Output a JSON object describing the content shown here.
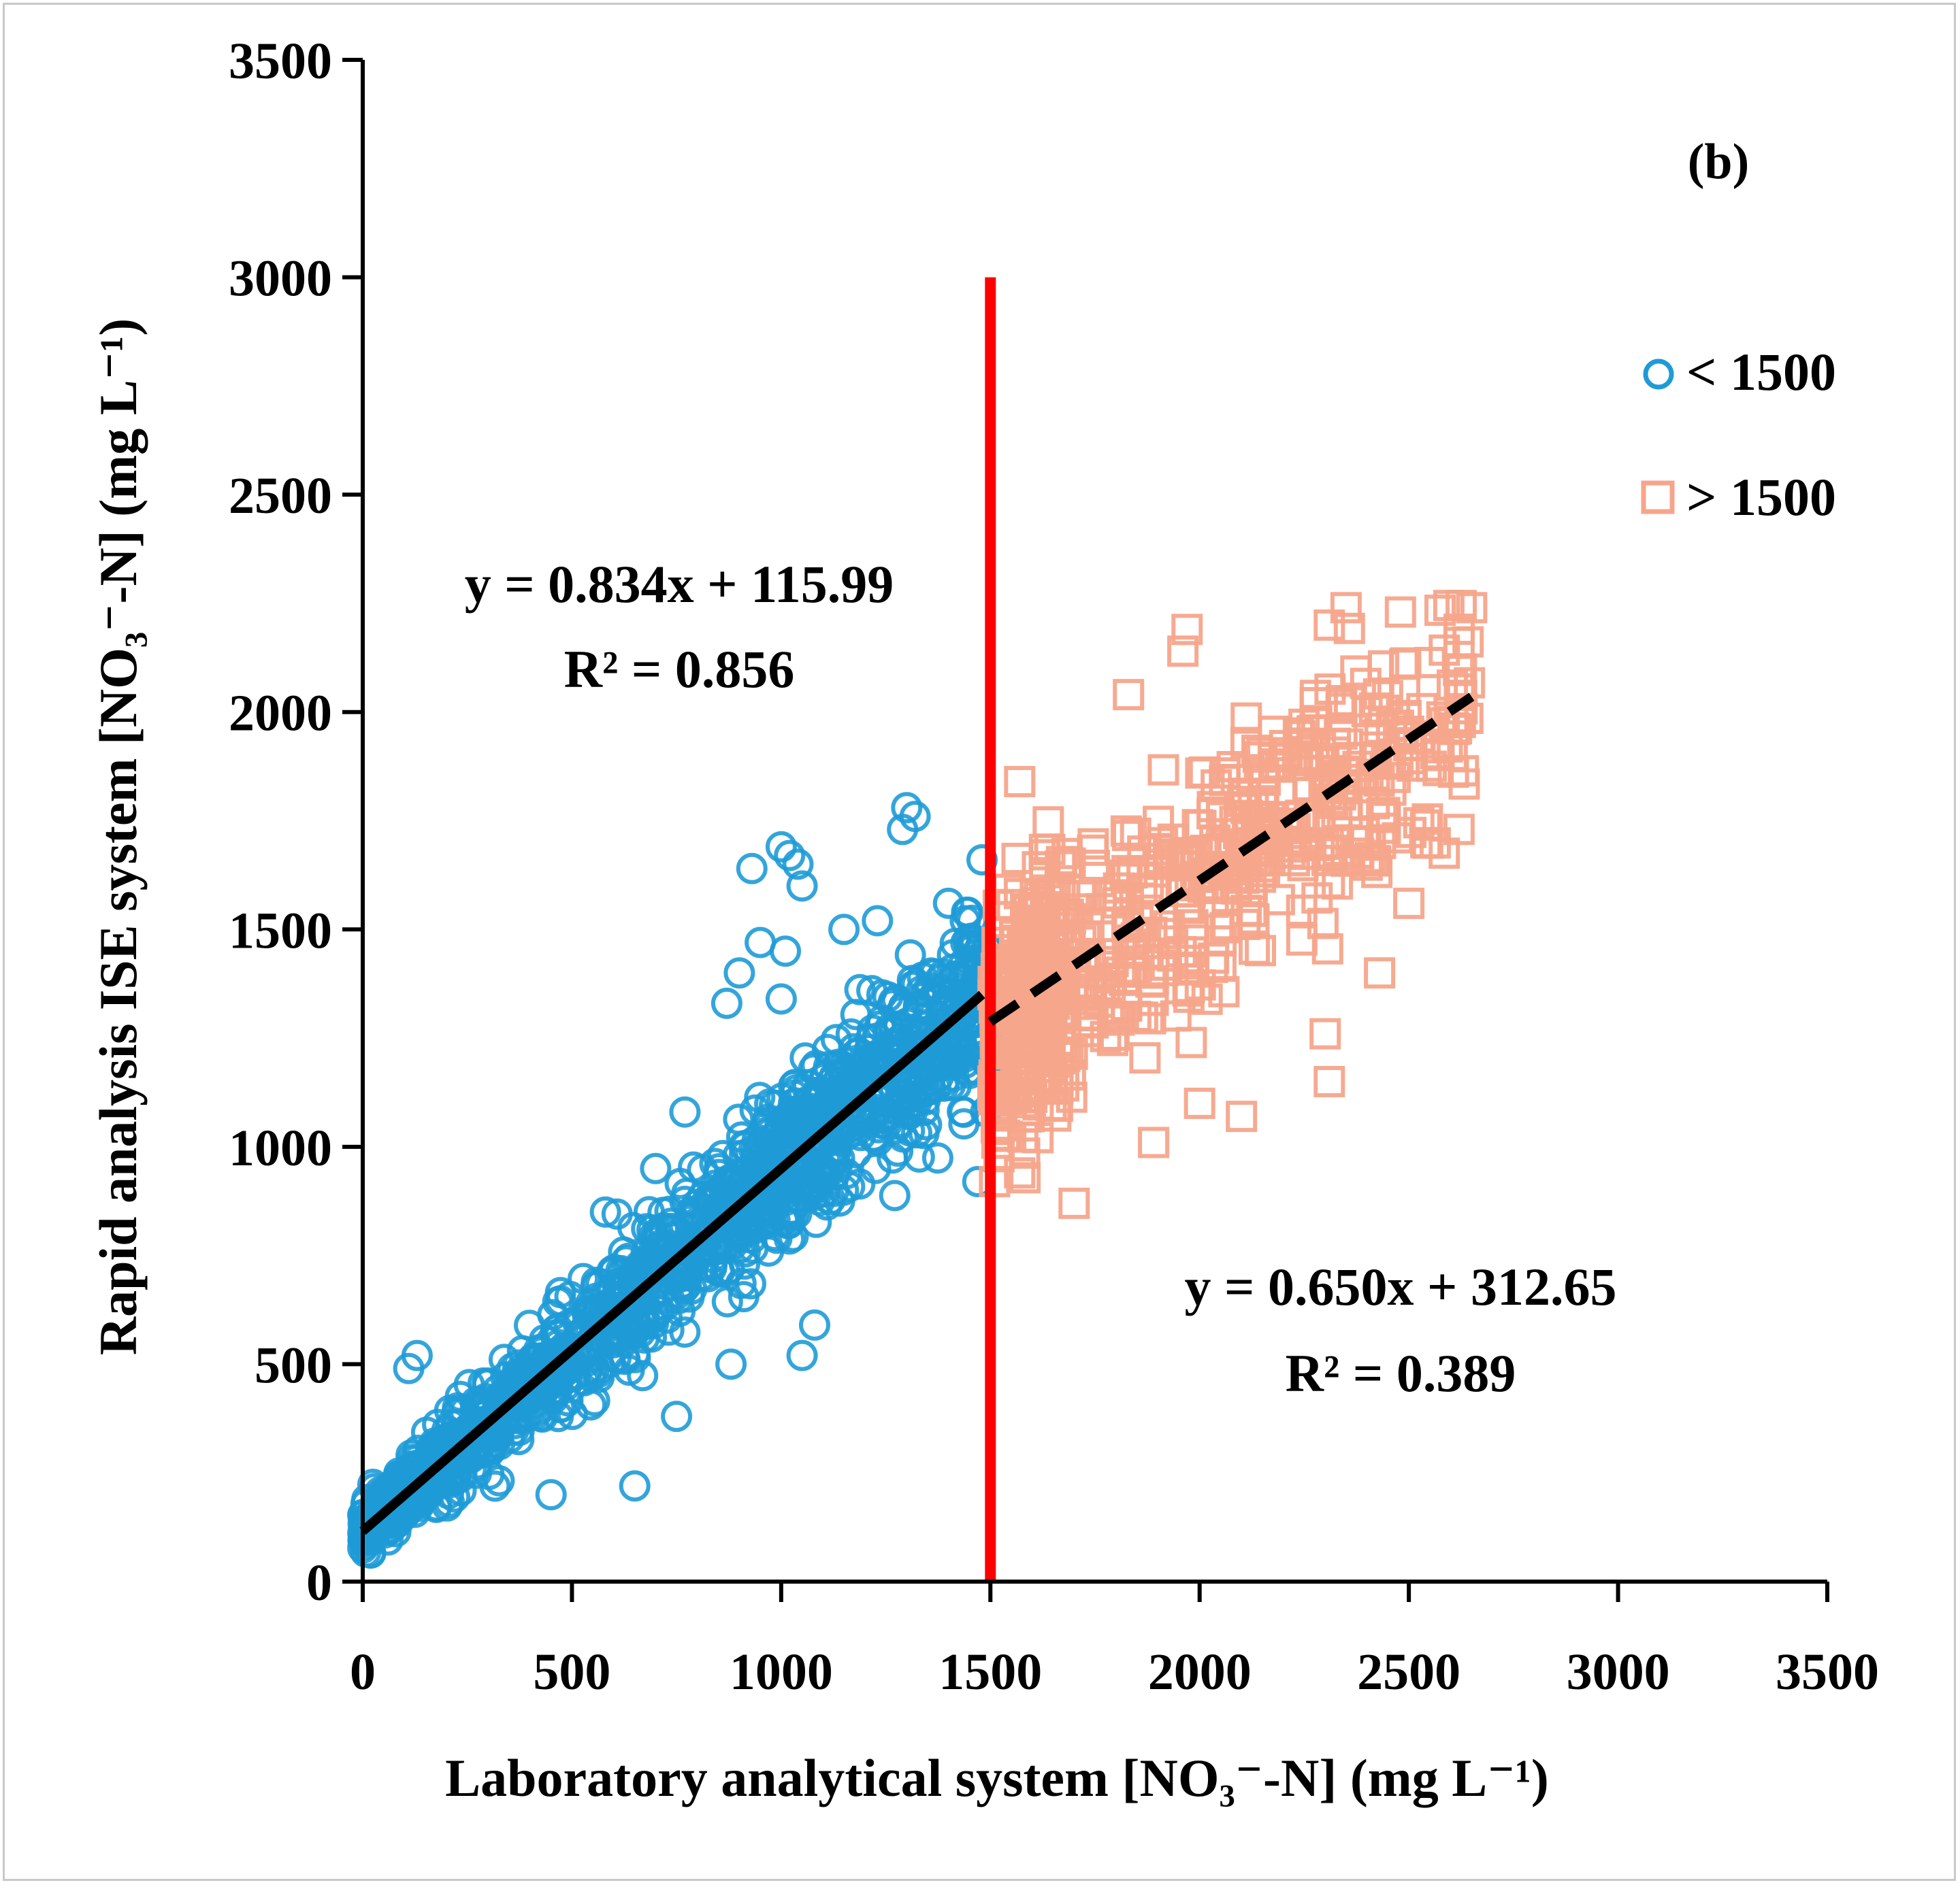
{
  "chart_data": {
    "type": "scatter",
    "panel_label": "(b)",
    "xlabel": "Laboratory analytical system [NO₃⁻-N] (mg L⁻¹)",
    "ylabel": "Rapid analysis ISE system [NO₃⁻-N] (mg L⁻¹)",
    "xlim": [
      0,
      3500
    ],
    "ylim": [
      0,
      3500
    ],
    "x_ticks": [
      "0",
      "500",
      "1000",
      "1500",
      "2000",
      "2500",
      "3000",
      "3500"
    ],
    "y_ticks": [
      "0",
      "500",
      "1000",
      "1500",
      "2000",
      "2500",
      "3000",
      "3500"
    ],
    "grid": false,
    "legend_position": "top-right",
    "threshold_line": {
      "x": 1500,
      "y_range": [
        0,
        3000
      ],
      "color": "#ff0000"
    },
    "series": [
      {
        "name": "< 1500",
        "marker": "circle",
        "color": "#1e9bd7",
        "n_points": 1500,
        "x_range": [
          0,
          1500
        ],
        "fit": {
          "equation": "y = 0.834x + 115.99",
          "r2": "R² = 0.856",
          "slope": 0.834,
          "intercept": 115.99,
          "x_range": [
            0,
            1480
          ],
          "style": "solid"
        },
        "points": [
          [
            1300,
            1780
          ],
          [
            1320,
            1760
          ],
          [
            1290,
            1730
          ],
          [
            1000,
            1690
          ],
          [
            1020,
            1670
          ],
          [
            930,
            1640
          ],
          [
            1040,
            1650
          ],
          [
            1050,
            1600
          ],
          [
            1150,
            1500
          ],
          [
            1230,
            1520
          ],
          [
            950,
            1470
          ],
          [
            1010,
            1450
          ],
          [
            870,
            1330
          ],
          [
            900,
            1400
          ],
          [
            1000,
            1340
          ],
          [
            110,
            490
          ],
          [
            130,
            520
          ],
          [
            650,
            220
          ],
          [
            450,
            200
          ],
          [
            1050,
            520
          ],
          [
            1080,
            590
          ],
          [
            880,
            500
          ],
          [
            750,
            380
          ],
          [
            1470,
            920
          ],
          [
            1480,
            1660
          ],
          [
            1400,
            1560
          ],
          [
            1440,
            1520
          ],
          [
            700,
            950
          ],
          [
            770,
            1080
          ],
          [
            580,
            850
          ]
        ]
      },
      {
        "name": "> 1500",
        "marker": "square",
        "color": "#f6a58b",
        "n_points": 700,
        "x_range": [
          1500,
          2650
        ],
        "fit": {
          "equation": "y = 0.650x + 312.65",
          "r2": "R² = 0.389",
          "slope": 0.65,
          "intercept": 312.65,
          "x_range": [
            1500,
            2650
          ],
          "style": "dashed"
        },
        "points": [
          [
            2650,
            2240
          ],
          [
            2620,
            2160
          ],
          [
            2480,
            2230
          ],
          [
            2350,
            2240
          ],
          [
            2310,
            2200
          ],
          [
            1970,
            2190
          ],
          [
            1960,
            2140
          ],
          [
            1830,
            2040
          ],
          [
            1570,
            1840
          ],
          [
            2620,
            1730
          ],
          [
            2430,
            1400
          ],
          [
            2310,
            1150
          ],
          [
            2300,
            1260
          ],
          [
            2000,
            1100
          ],
          [
            2100,
            1070
          ],
          [
            1890,
            1010
          ],
          [
            1700,
            870
          ],
          [
            1570,
            940
          ],
          [
            1510,
            920
          ],
          [
            2490,
            2050
          ],
          [
            2490,
            2110
          ],
          [
            2610,
            1960
          ],
          [
            2540,
            1740
          ],
          [
            2500,
            1560
          ],
          [
            1980,
            1240
          ]
        ]
      }
    ]
  }
}
